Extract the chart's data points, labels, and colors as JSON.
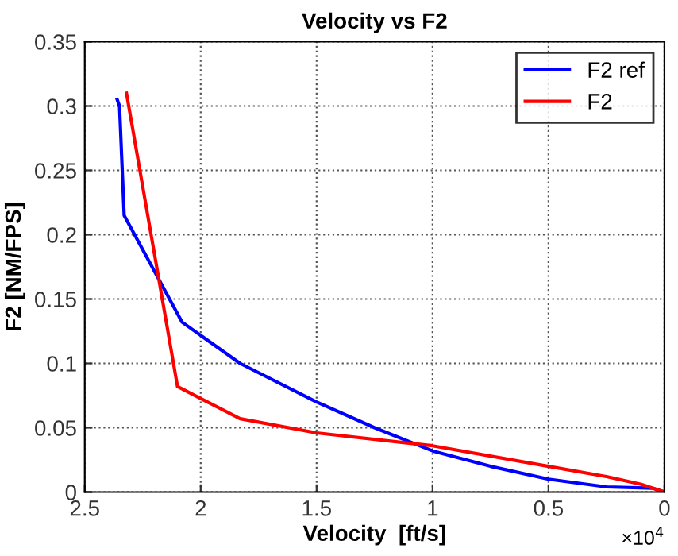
{
  "chart_data": {
    "type": "line",
    "title": "Velocity vs F2",
    "xlabel": "Velocity  [ft/s]",
    "ylabel": "F2 [NM/FPS]",
    "annotations": [
      "×10$^{4}$"
    ],
    "series": [
      {
        "name": "F2 ref",
        "color": "#0000ff",
        "x": [
          2.36,
          2.35,
          2.33,
          2.08,
          1.83,
          1.5,
          1.25,
          1.0,
          0.75,
          0.5,
          0.25,
          0.05,
          0
        ],
        "values": [
          0.305,
          0.3,
          0.215,
          0.132,
          0.1,
          0.07,
          0.05,
          0.032,
          0.02,
          0.01,
          0.004,
          0.003,
          0.0
        ]
      },
      {
        "name": "F2",
        "color": "#ff0000",
        "x": [
          2.32,
          2.1,
          1.83,
          1.5,
          1.0,
          0.5,
          0.25,
          0.1,
          0
        ],
        "values": [
          0.31,
          0.082,
          0.057,
          0.046,
          0.036,
          0.02,
          0.012,
          0.006,
          0.0
        ]
      }
    ],
    "xlim": [
      2.5,
      0
    ],
    "xticks": [
      2.5,
      2,
      1.5,
      1,
      0.5,
      0
    ],
    "ylim": [
      0,
      0.35
    ],
    "yticks": [
      0,
      0.05,
      0.1,
      0.15,
      0.2,
      0.25,
      0.3,
      0.35
    ],
    "grid": true,
    "legend": "top right",
    "line_style": "solid"
  }
}
